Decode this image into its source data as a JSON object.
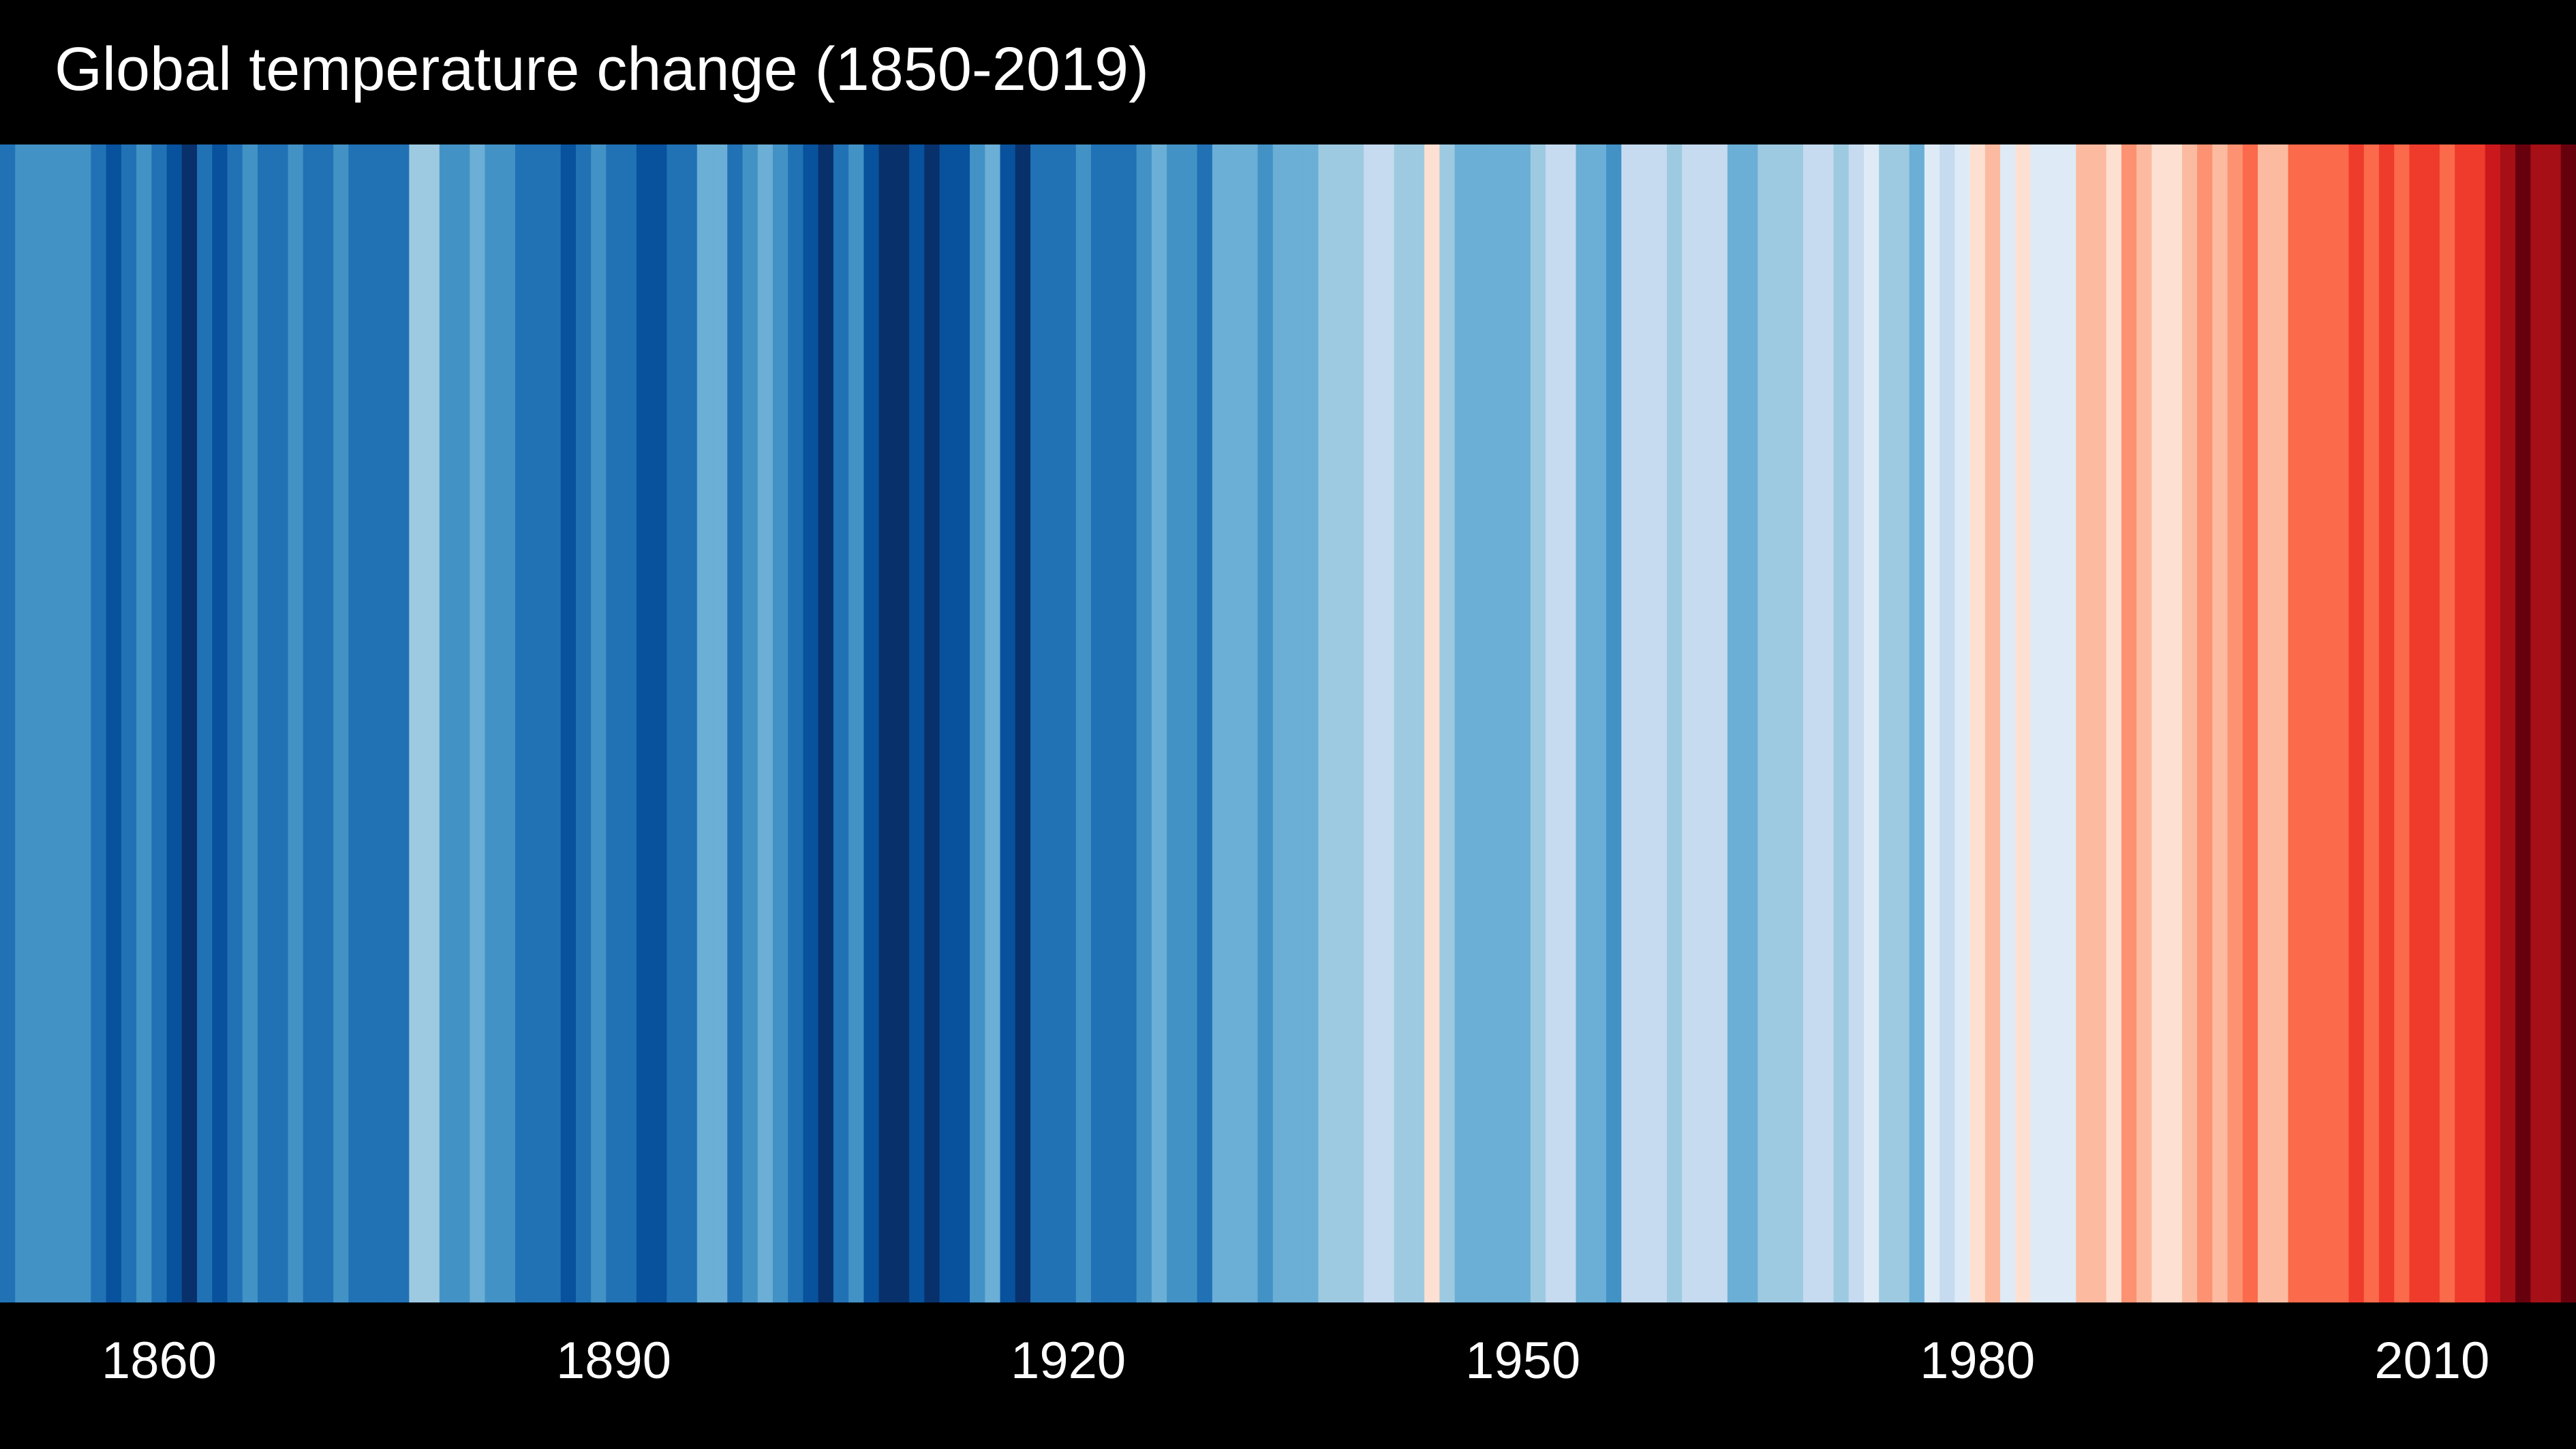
{
  "chart_data": {
    "type": "stripes",
    "title": "Global temperature change (1850-2019)",
    "x": [
      1850,
      1851,
      1852,
      1853,
      1854,
      1855,
      1856,
      1857,
      1858,
      1859,
      1860,
      1861,
      1862,
      1863,
      1864,
      1865,
      1866,
      1867,
      1868,
      1869,
      1870,
      1871,
      1872,
      1873,
      1874,
      1875,
      1876,
      1877,
      1878,
      1879,
      1880,
      1881,
      1882,
      1883,
      1884,
      1885,
      1886,
      1887,
      1888,
      1889,
      1890,
      1891,
      1892,
      1893,
      1894,
      1895,
      1896,
      1897,
      1898,
      1899,
      1900,
      1901,
      1902,
      1903,
      1904,
      1905,
      1906,
      1907,
      1908,
      1909,
      1910,
      1911,
      1912,
      1913,
      1914,
      1915,
      1916,
      1917,
      1918,
      1919,
      1920,
      1921,
      1922,
      1923,
      1924,
      1925,
      1926,
      1927,
      1928,
      1929,
      1930,
      1931,
      1932,
      1933,
      1934,
      1935,
      1936,
      1937,
      1938,
      1939,
      1940,
      1941,
      1942,
      1943,
      1944,
      1945,
      1946,
      1947,
      1948,
      1949,
      1950,
      1951,
      1952,
      1953,
      1954,
      1955,
      1956,
      1957,
      1958,
      1959,
      1960,
      1961,
      1962,
      1963,
      1964,
      1965,
      1966,
      1967,
      1968,
      1969,
      1970,
      1971,
      1972,
      1973,
      1974,
      1975,
      1976,
      1977,
      1978,
      1979,
      1980,
      1981,
      1982,
      1983,
      1984,
      1985,
      1986,
      1987,
      1988,
      1989,
      1990,
      1991,
      1992,
      1993,
      1994,
      1995,
      1996,
      1997,
      1998,
      1999,
      2000,
      2001,
      2002,
      2003,
      2004,
      2005,
      2006,
      2007,
      2008,
      2009,
      2010,
      2011,
      2012,
      2013,
      2014,
      2015,
      2016,
      2017,
      2018,
      2019
    ],
    "values": [
      -0.37,
      -0.22,
      -0.23,
      -0.27,
      -0.29,
      -0.3,
      -0.32,
      -0.47,
      -0.39,
      -0.28,
      -0.39,
      -0.43,
      -0.54,
      -0.34,
      -0.47,
      -0.33,
      -0.28,
      -0.33,
      -0.31,
      -0.28,
      -0.32,
      -0.36,
      -0.27,
      -0.32,
      -0.37,
      -0.38,
      -0.37,
      -0.09,
      -0.02,
      -0.24,
      -0.27,
      -0.18,
      -0.26,
      -0.27,
      -0.38,
      -0.36,
      -0.32,
      -0.43,
      -0.34,
      -0.21,
      -0.4,
      -0.35,
      -0.45,
      -0.46,
      -0.41,
      -0.38,
      -0.16,
      -0.15,
      -0.36,
      -0.22,
      -0.15,
      -0.23,
      -0.35,
      -0.45,
      -0.52,
      -0.37,
      -0.29,
      -0.5,
      -0.52,
      -0.53,
      -0.49,
      -0.54,
      -0.45,
      -0.44,
      -0.26,
      -0.19,
      -0.42,
      -0.53,
      -0.4,
      -0.32,
      -0.31,
      -0.24,
      -0.33,
      -0.31,
      -0.33,
      -0.24,
      -0.11,
      -0.22,
      -0.23,
      -0.37,
      -0.15,
      -0.1,
      -0.14,
      -0.29,
      -0.15,
      -0.2,
      -0.15,
      -0.04,
      -0.01,
      -0.02,
      0.03,
      0.03,
      -0.03,
      -0.01,
      0.22,
      0.0,
      -0.11,
      -0.12,
      -0.11,
      -0.12,
      -0.19,
      -0.06,
      0.02,
      0.08,
      -0.13,
      -0.19,
      -0.26,
      0.05,
      0.06,
      0.03,
      -0.03,
      0.06,
      0.04,
      0.05,
      -0.2,
      -0.11,
      -0.06,
      -0.02,
      -0.08,
      0.05,
      0.03,
      -0.08,
      0.01,
      0.16,
      -0.07,
      -0.01,
      -0.1,
      0.18,
      0.07,
      0.16,
      0.26,
      0.32,
      0.14,
      0.31,
      0.16,
      0.12,
      0.18,
      0.33,
      0.4,
      0.27,
      0.45,
      0.41,
      0.22,
      0.23,
      0.32,
      0.45,
      0.33,
      0.47,
      0.61,
      0.39,
      0.39,
      0.54,
      0.63,
      0.62,
      0.54,
      0.69,
      0.63,
      0.66,
      0.54,
      0.66,
      0.72,
      0.61,
      0.64,
      0.68,
      0.75,
      0.9,
      1.02,
      0.92,
      0.85,
      0.98
    ],
    "clim": [
      -0.62,
      1.05
    ],
    "colorscale": [
      "#08306b",
      "#08519c",
      "#2171b5",
      "#4292c6",
      "#6baed6",
      "#9ecae1",
      "#c6dbef",
      "#deebf7",
      "#fee0d2",
      "#fcbba1",
      "#fc9272",
      "#fb6a4a",
      "#ef3b2c",
      "#cb181d",
      "#a50f15",
      "#67000d"
    ],
    "xlim": [
      1849.5,
      2019.5
    ],
    "xticks": [
      1860,
      1890,
      1920,
      1950,
      1980,
      2010
    ]
  }
}
